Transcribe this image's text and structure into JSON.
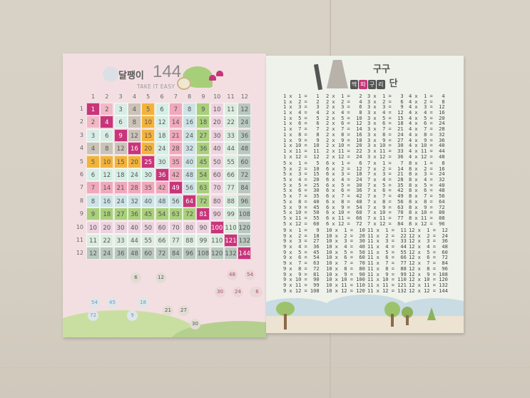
{
  "left_poster": {
    "title_korean": "달팽이",
    "title_number": "144",
    "subtitle": "TAKE IT EASY",
    "headers": [
      1,
      2,
      3,
      4,
      5,
      6,
      7,
      8,
      9,
      10,
      11,
      12
    ],
    "colors": {
      "diagonal": "#c8357a",
      "1": "#f2c2cf",
      "2": "#f2b8c6",
      "3": "#d9ece6",
      "4": "#cbc2b8",
      "5": "#f2b33c",
      "6": "#d5eee6",
      "7": "#f0a9bc",
      "8": "#cde3e6",
      "9": "#a9cf7c",
      "10": "#ecd3df",
      "11": "#dcecdf",
      "12": "#b9c8be"
    },
    "grid": [
      [
        1,
        2,
        3,
        4,
        5,
        6,
        7,
        8,
        9,
        10,
        11,
        12
      ],
      [
        2,
        4,
        6,
        8,
        10,
        12,
        14,
        16,
        18,
        20,
        22,
        24
      ],
      [
        3,
        6,
        9,
        12,
        15,
        18,
        21,
        24,
        27,
        30,
        33,
        36
      ],
      [
        4,
        8,
        12,
        16,
        20,
        24,
        28,
        32,
        36,
        40,
        44,
        48
      ],
      [
        5,
        10,
        15,
        20,
        25,
        30,
        35,
        40,
        45,
        50,
        55,
        60
      ],
      [
        6,
        12,
        18,
        24,
        30,
        36,
        42,
        48,
        54,
        60,
        66,
        72
      ],
      [
        7,
        14,
        21,
        28,
        35,
        42,
        49,
        56,
        63,
        70,
        77,
        84
      ],
      [
        8,
        16,
        24,
        32,
        40,
        48,
        56,
        64,
        72,
        80,
        88,
        96
      ],
      [
        9,
        18,
        27,
        36,
        45,
        54,
        63,
        72,
        81,
        90,
        99,
        108
      ],
      [
        10,
        20,
        30,
        40,
        50,
        60,
        70,
        80,
        90,
        100,
        110,
        120
      ],
      [
        11,
        22,
        33,
        44,
        55,
        66,
        77,
        88,
        99,
        110,
        121,
        132
      ],
      [
        12,
        24,
        36,
        48,
        60,
        72,
        84,
        96,
        108,
        120,
        132,
        144
      ]
    ],
    "puzzle_nodes": [
      "6",
      "12",
      "48",
      "54",
      "30",
      "24",
      "18",
      "6",
      "54",
      "45",
      "18",
      "72",
      "9",
      "21",
      "27",
      "30"
    ]
  },
  "right_poster": {
    "title_top": "구구",
    "title_blocks": [
      "딱",
      "따",
      "구",
      "리"
    ],
    "title_end": "단",
    "tables": [
      [
        "1 x  1 =   1",
        "1 x  2 =   2",
        "1 x  3 =   3",
        "1 x  4 =   4",
        "1 x  5 =   5",
        "1 x  6 =   6",
        "1 x  7 =   7",
        "1 x  8 =   8",
        "1 x  9 =   9",
        "1 x 10 =  10",
        "1 x 11 =  11",
        "1 x 12 =  12"
      ],
      [
        "2 x  1 =   2",
        "2 x  2 =   4",
        "2 x  3 =   6",
        "2 x  4 =   8",
        "2 x  5 =  10",
        "2 x  6 =  12",
        "2 x  7 =  14",
        "2 x  8 =  16",
        "2 x  9 =  18",
        "2 x 10 =  20",
        "2 x 11 =  22",
        "2 x 12 =  24"
      ],
      [
        "3 x  1 =   3",
        "3 x  2 =   6",
        "3 x  3 =   9",
        "3 x  4 =  12",
        "3 x  5 =  15",
        "3 x  6 =  18",
        "3 x  7 =  21",
        "3 x  8 =  24",
        "3 x  9 =  27",
        "3 x 10 =  30",
        "3 x 11 =  33",
        "3 x 12 =  36"
      ],
      [
        "4 x  1 =   4",
        "4 x  2 =   8",
        "4 x  3 =  12",
        "4 x  4 =  16",
        "4 x  5 =  20",
        "4 x  6 =  24",
        "4 x  7 =  28",
        "4 x  8 =  32",
        "4 x  9 =  36",
        "4 x 10 =  40",
        "4 x 11 =  44",
        "4 x 12 =  48"
      ],
      [
        "5 x  1 =   5",
        "5 x  2 =  10",
        "5 x  3 =  15",
        "5 x  4 =  20",
        "5 x  5 =  25",
        "5 x  6 =  30",
        "5 x  7 =  35",
        "5 x  8 =  40",
        "5 x  9 =  45",
        "5 x 10 =  50",
        "5 x 11 =  55",
        "5 x 12 =  60"
      ],
      [
        "6 x  1 =   6",
        "6 x  2 =  12",
        "6 x  3 =  18",
        "6 x  4 =  24",
        "6 x  5 =  30",
        "6 x  6 =  36",
        "6 x  7 =  42",
        "6 x  8 =  48",
        "6 x  9 =  54",
        "6 x 10 =  60",
        "6 x 11 =  66",
        "6 x 12 =  72"
      ],
      [
        "7 x  1 =   7",
        "7 x  2 =  14",
        "7 x  3 =  21",
        "7 x  4 =  28",
        "7 x  5 =  35",
        "7 x  6 =  42",
        "7 x  7 =  49",
        "7 x  8 =  56",
        "7 x  9 =  63",
        "7 x 10 =  70",
        "7 x 11 =  77",
        "7 x 12 =  84"
      ],
      [
        "8 x  1 =   8",
        "8 x  2 =  16",
        "8 x  3 =  24",
        "8 x  4 =  32",
        "8 x  5 =  40",
        "8 x  6 =  48",
        "8 x  7 =  56",
        "8 x  8 =  64",
        "8 x  9 =  72",
        "8 x 10 =  80",
        "8 x 11 =  88",
        "8 x 12 =  96"
      ],
      [
        "9 x  1 =   9",
        "9 x  2 =  18",
        "9 x  3 =  27",
        "9 x  4 =  36",
        "9 x  5 =  45",
        "9 x  6 =  54",
        "9 x  7 =  63",
        "9 x  8 =  72",
        "9 x  9 =  81",
        "9 x 10 =  90",
        "9 x 11 =  99",
        "9 x 12 = 108"
      ],
      [
        "10 x  1 =  10",
        "10 x  2 =  20",
        "10 x  3 =  30",
        "10 x  4 =  40",
        "10 x  5 =  50",
        "10 x  6 =  60",
        "10 x  7 =  70",
        "10 x  8 =  80",
        "10 x  9 =  90",
        "10 x 10 = 100",
        "10 x 11 = 110",
        "10 x 12 = 120"
      ],
      [
        "11 x  1 =  11",
        "11 x  2 =  22",
        "11 x  3 =  33",
        "11 x  4 =  44",
        "11 x  5 =  55",
        "11 x  6 =  66",
        "11 x  7 =  77",
        "11 x  8 =  88",
        "11 x  9 =  99",
        "11 x 10 = 110",
        "11 x 11 = 121",
        "11 x 12 = 132"
      ],
      [
        "12 x  1 =  12",
        "12 x  2 =  24",
        "12 x  3 =  36",
        "12 x  4 =  48",
        "12 x  5 =  60",
        "12 x  6 =  72",
        "12 x  7 =  84",
        "12 x  8 =  96",
        "12 x  9 = 108",
        "12 x 10 = 120",
        "12 x 11 = 132",
        "12 x 12 = 144"
      ]
    ]
  }
}
